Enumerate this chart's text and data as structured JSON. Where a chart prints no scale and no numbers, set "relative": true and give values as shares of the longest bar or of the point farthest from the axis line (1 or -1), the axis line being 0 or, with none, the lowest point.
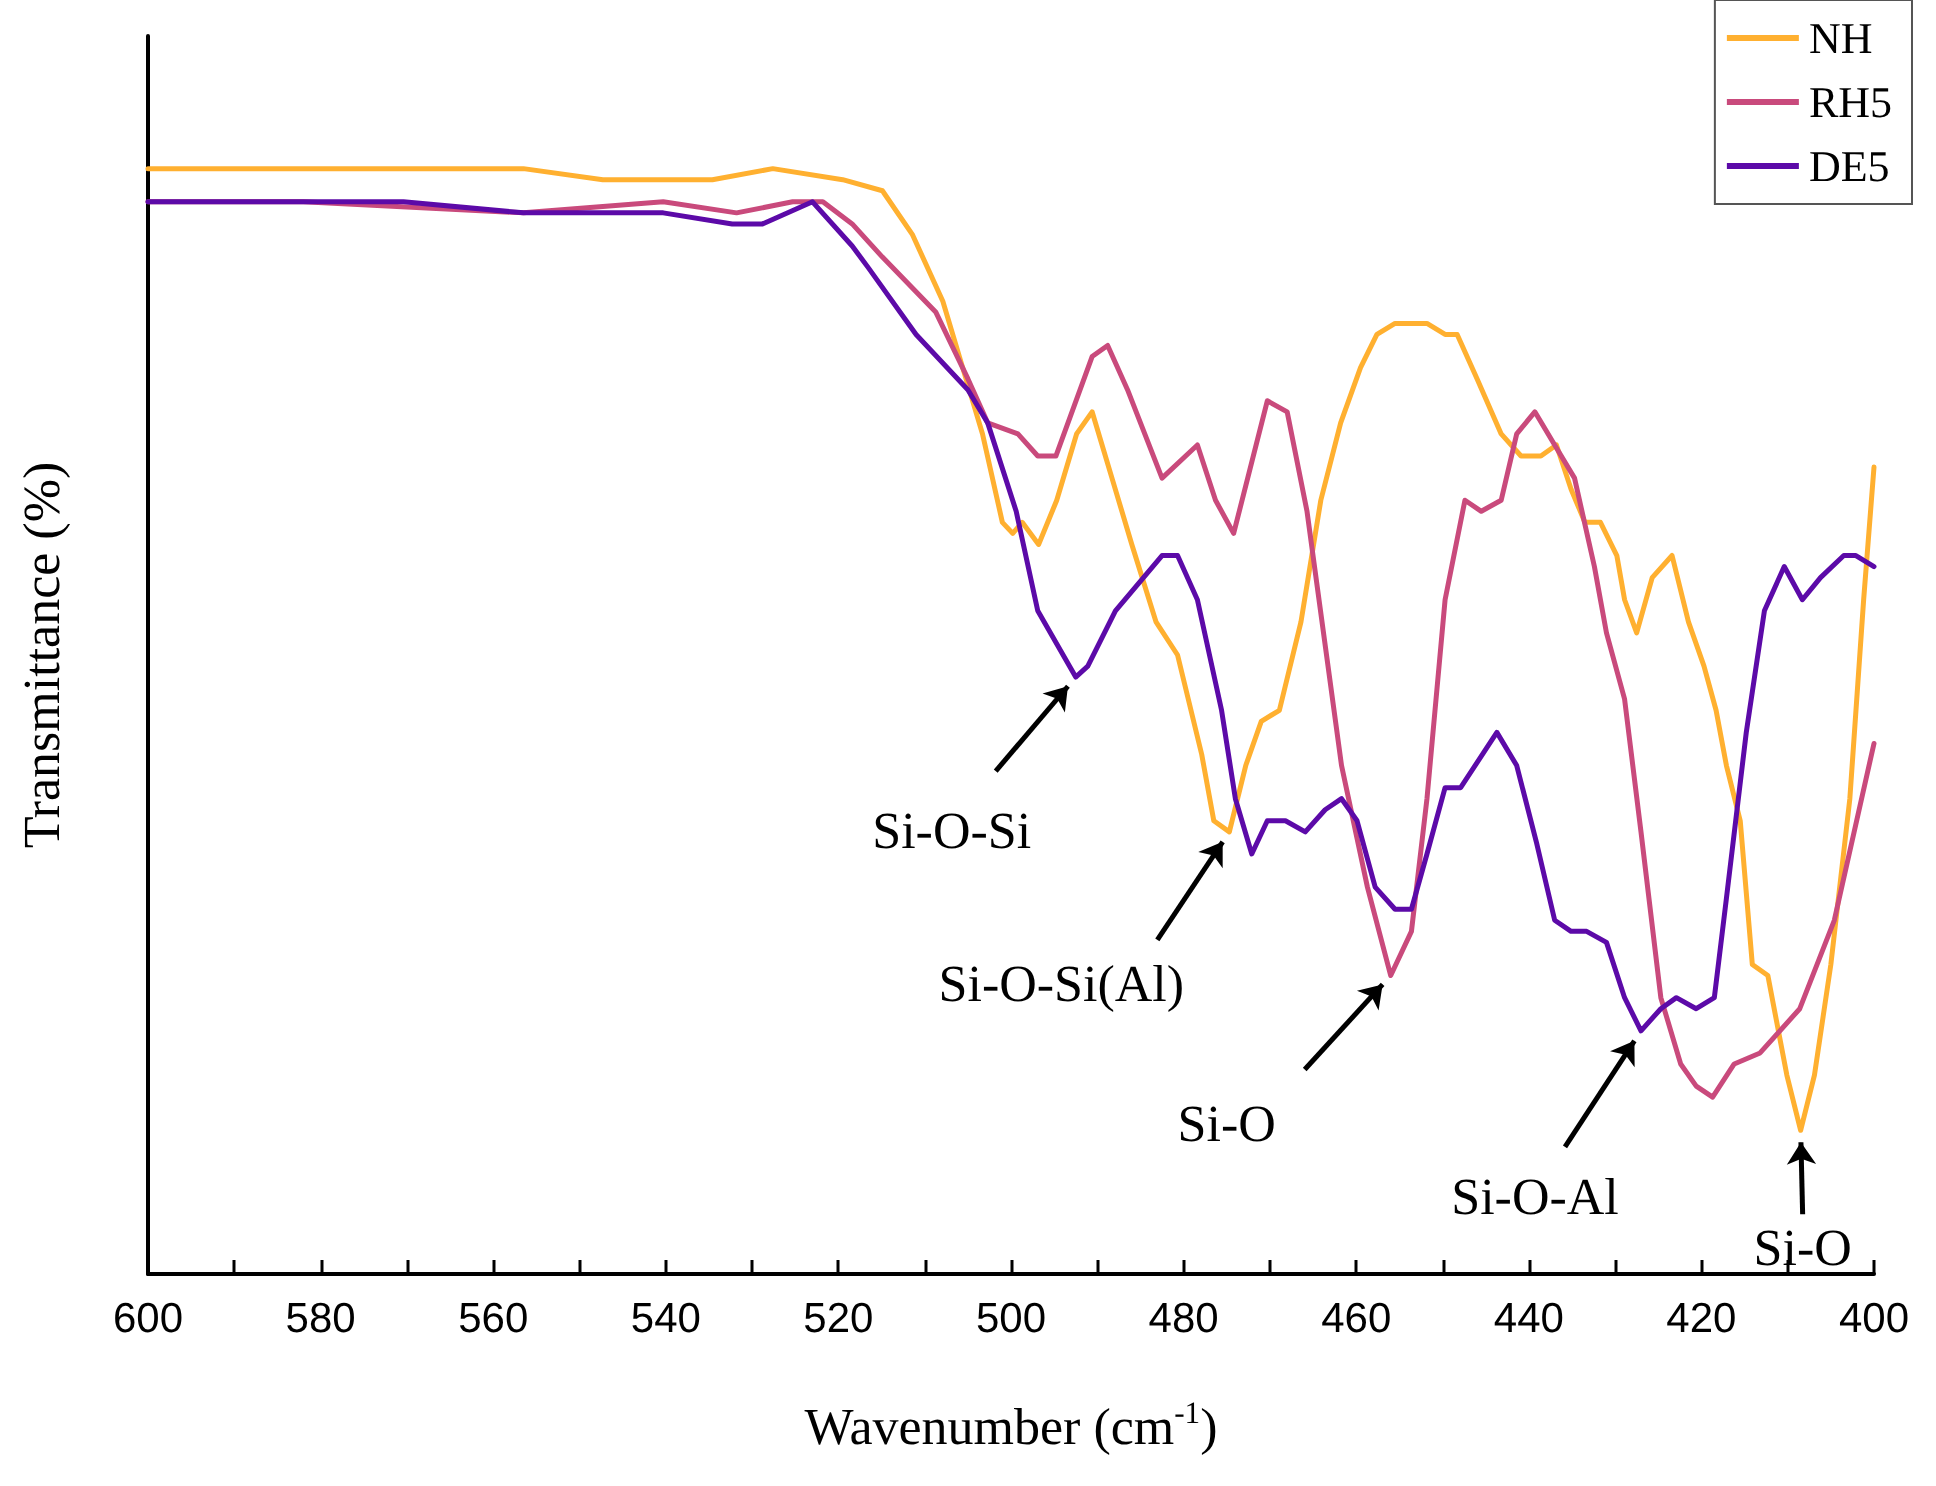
{
  "chart_data": {
    "type": "line",
    "xlabel": "Wavenumber (cm$^{-1}$)",
    "ylabel": "Transmittance (%)",
    "relative": true,
    "xlim": [
      600,
      400
    ],
    "xticks": [
      600,
      {
        "value": 590,
        "label": null
      },
      580,
      {
        "value": 570,
        "label": null
      },
      560,
      {
        "value": 550,
        "label": null
      },
      540,
      {
        "value": 530,
        "label": null
      },
      520,
      {
        "value": 510,
        "label": null
      },
      500,
      {
        "value": 490,
        "label": null
      },
      480,
      {
        "value": 470,
        "label": null
      },
      460,
      {
        "value": 450,
        "label": null
      },
      440,
      {
        "value": 430,
        "label": null
      },
      420,
      {
        "value": 410,
        "label": null
      },
      400
    ],
    "grid": false,
    "legend": "top right",
    "marker": "none",
    "line_style": "solid",
    "series": [
      {
        "name": "NH",
        "color": "#ffb030",
        "x": [
          600,
          593.5,
          582,
          570.4,
          556.5,
          547.3,
          540.3,
          534.6,
          527.6,
          519.5,
          514.9,
          511.4,
          507.9,
          505.6,
          503.3,
          501,
          499.8,
          498.7,
          496.8,
          494.7,
          492.4,
          490.6,
          488.3,
          486,
          483.2,
          480.7,
          477.9,
          476.5,
          474.7,
          472.8,
          471,
          468.9,
          466.4,
          464.1,
          461.8,
          459.5,
          457.6,
          455.5,
          453.9,
          451.8,
          449.7,
          448.3,
          446,
          443.2,
          440.9,
          438.6,
          436.8,
          435.1,
          433.5,
          431.7,
          429.8,
          428.9,
          427.5,
          425.7,
          423.4,
          421.5,
          419.7,
          418.3,
          417.1,
          415.5,
          414.1,
          412.3,
          410.1,
          408.5,
          406.9,
          405,
          402.8,
          401.2,
          400
        ],
        "values": [
          1.0,
          1.0,
          1.0,
          1.0,
          1.0,
          0.99,
          0.99,
          0.99,
          1.0,
          0.99,
          0.98,
          0.94,
          0.88,
          0.82,
          0.76,
          0.68,
          0.67,
          0.68,
          0.66,
          0.7,
          0.76,
          0.78,
          0.72,
          0.66,
          0.59,
          0.56,
          0.47,
          0.41,
          0.4,
          0.46,
          0.5,
          0.51,
          0.59,
          0.7,
          0.77,
          0.82,
          0.85,
          0.86,
          0.86,
          0.86,
          0.85,
          0.85,
          0.81,
          0.76,
          0.74,
          0.74,
          0.75,
          0.71,
          0.68,
          0.68,
          0.65,
          0.61,
          0.58,
          0.63,
          0.65,
          0.59,
          0.55,
          0.51,
          0.46,
          0.41,
          0.28,
          0.27,
          0.18,
          0.13,
          0.18,
          0.28,
          0.43,
          0.61,
          0.73
        ]
      },
      {
        "name": "RH5",
        "color": "#c94a7c",
        "x": [
          600,
          582,
          556.5,
          540.3,
          531.8,
          525.3,
          521.8,
          518.4,
          514.9,
          508.7,
          505,
          502.7,
          499.2,
          496.9,
          494.8,
          490.6,
          488.8,
          486.5,
          482.5,
          478.4,
          476.3,
          474.2,
          470.3,
          468,
          465.7,
          461.7,
          458.7,
          456,
          453.6,
          451.8,
          449.7,
          447.4,
          445.5,
          443.2,
          441.4,
          439.3,
          437,
          434.7,
          432.4,
          431,
          428.9,
          427,
          424.7,
          422.4,
          420.6,
          418.7,
          416.2,
          413.2,
          408.6,
          404.6,
          400
        ],
        "values": [
          0.97,
          0.97,
          0.96,
          0.97,
          0.96,
          0.97,
          0.97,
          0.95,
          0.92,
          0.87,
          0.81,
          0.77,
          0.76,
          0.74,
          0.74,
          0.83,
          0.84,
          0.8,
          0.72,
          0.75,
          0.7,
          0.67,
          0.79,
          0.78,
          0.69,
          0.46,
          0.35,
          0.27,
          0.31,
          0.43,
          0.61,
          0.7,
          0.69,
          0.7,
          0.76,
          0.78,
          0.75,
          0.72,
          0.64,
          0.58,
          0.52,
          0.4,
          0.25,
          0.19,
          0.17,
          0.16,
          0.19,
          0.2,
          0.24,
          0.32,
          0.48
        ]
      },
      {
        "name": "DE5",
        "color": "#5c0aa8",
        "x": [
          600,
          594.7,
          570.4,
          556.5,
          540.3,
          532.3,
          528.8,
          523,
          518.4,
          516.5,
          511,
          505,
          502.7,
          499.4,
          496.9,
          492.5,
          491.1,
          487.9,
          482.5,
          480.7,
          478.4,
          475.6,
          474,
          472.1,
          470.3,
          468.2,
          465.9,
          463.6,
          461.7,
          459.9,
          457.8,
          455.5,
          453.6,
          451.8,
          449.7,
          447.9,
          443.7,
          441.4,
          439.1,
          437,
          435.1,
          433.3,
          431,
          428.9,
          427,
          424.7,
          422.9,
          420.6,
          418.5,
          417.1,
          414.8,
          412.7,
          410.4,
          408.3,
          406.2,
          403.5,
          402.1,
          400
        ],
        "values": [
          0.97,
          0.97,
          0.97,
          0.96,
          0.96,
          0.95,
          0.95,
          0.97,
          0.93,
          0.91,
          0.85,
          0.8,
          0.77,
          0.69,
          0.6,
          0.54,
          0.55,
          0.6,
          0.65,
          0.65,
          0.61,
          0.51,
          0.43,
          0.38,
          0.41,
          0.41,
          0.4,
          0.42,
          0.43,
          0.41,
          0.35,
          0.33,
          0.33,
          0.38,
          0.44,
          0.44,
          0.49,
          0.46,
          0.39,
          0.32,
          0.31,
          0.31,
          0.3,
          0.25,
          0.22,
          0.24,
          0.25,
          0.24,
          0.25,
          0.34,
          0.49,
          0.6,
          0.64,
          0.61,
          0.63,
          0.65,
          0.65,
          0.64
        ]
      }
    ],
    "annotations": [
      {
        "text": "Si-O-Si",
        "x": 492.5,
        "y": 0.54
      },
      {
        "text": "Si-O-Si(Al)",
        "x": 474.7,
        "y": 0.4
      },
      {
        "text": "Si-O",
        "x": 456,
        "y": 0.27
      },
      {
        "text": "Si-O-Al",
        "x": 427,
        "y": 0.22
      },
      {
        "text": "Si-O",
        "x": 408.5,
        "y": 0.13
      }
    ]
  }
}
